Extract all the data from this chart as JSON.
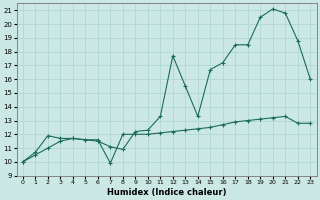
{
  "xlabel": "Humidex (Indice chaleur)",
  "ylabel": "",
  "bg_color": "#cce8e4",
  "line_color": "#1a6b5a",
  "grid_color": "#b0d8d0",
  "xlim": [
    -0.5,
    23.5
  ],
  "ylim": [
    9,
    21.5
  ],
  "yticks": [
    9,
    10,
    11,
    12,
    13,
    14,
    15,
    16,
    17,
    18,
    19,
    20,
    21
  ],
  "xticks": [
    0,
    1,
    2,
    3,
    4,
    5,
    6,
    7,
    8,
    9,
    10,
    11,
    12,
    13,
    14,
    15,
    16,
    17,
    18,
    19,
    20,
    21,
    22,
    23
  ],
  "line1_x": [
    0,
    1,
    2,
    3,
    4,
    5,
    6,
    7,
    8,
    9,
    10,
    11,
    12,
    13,
    14,
    15,
    16,
    17,
    18,
    19,
    20,
    21,
    22,
    23
  ],
  "line1_y": [
    10.0,
    10.7,
    11.9,
    11.7,
    11.7,
    11.6,
    11.5,
    11.1,
    10.9,
    12.2,
    12.3,
    13.3,
    17.7,
    15.5,
    13.3,
    16.7,
    17.2,
    18.5,
    18.5,
    20.5,
    21.1,
    20.8,
    18.8,
    16.0
  ],
  "line2_x": [
    0,
    1,
    2,
    3,
    4,
    5,
    6,
    7,
    8,
    9,
    10,
    11,
    12,
    13,
    14,
    15,
    16,
    17,
    18,
    19,
    20,
    21,
    22,
    23
  ],
  "line2_y": [
    10.0,
    10.5,
    11.0,
    11.5,
    11.7,
    11.6,
    11.6,
    9.9,
    12.0,
    12.0,
    12.0,
    12.1,
    12.2,
    12.3,
    12.4,
    12.5,
    12.7,
    12.9,
    13.0,
    13.1,
    13.2,
    13.3,
    12.8,
    12.8
  ]
}
